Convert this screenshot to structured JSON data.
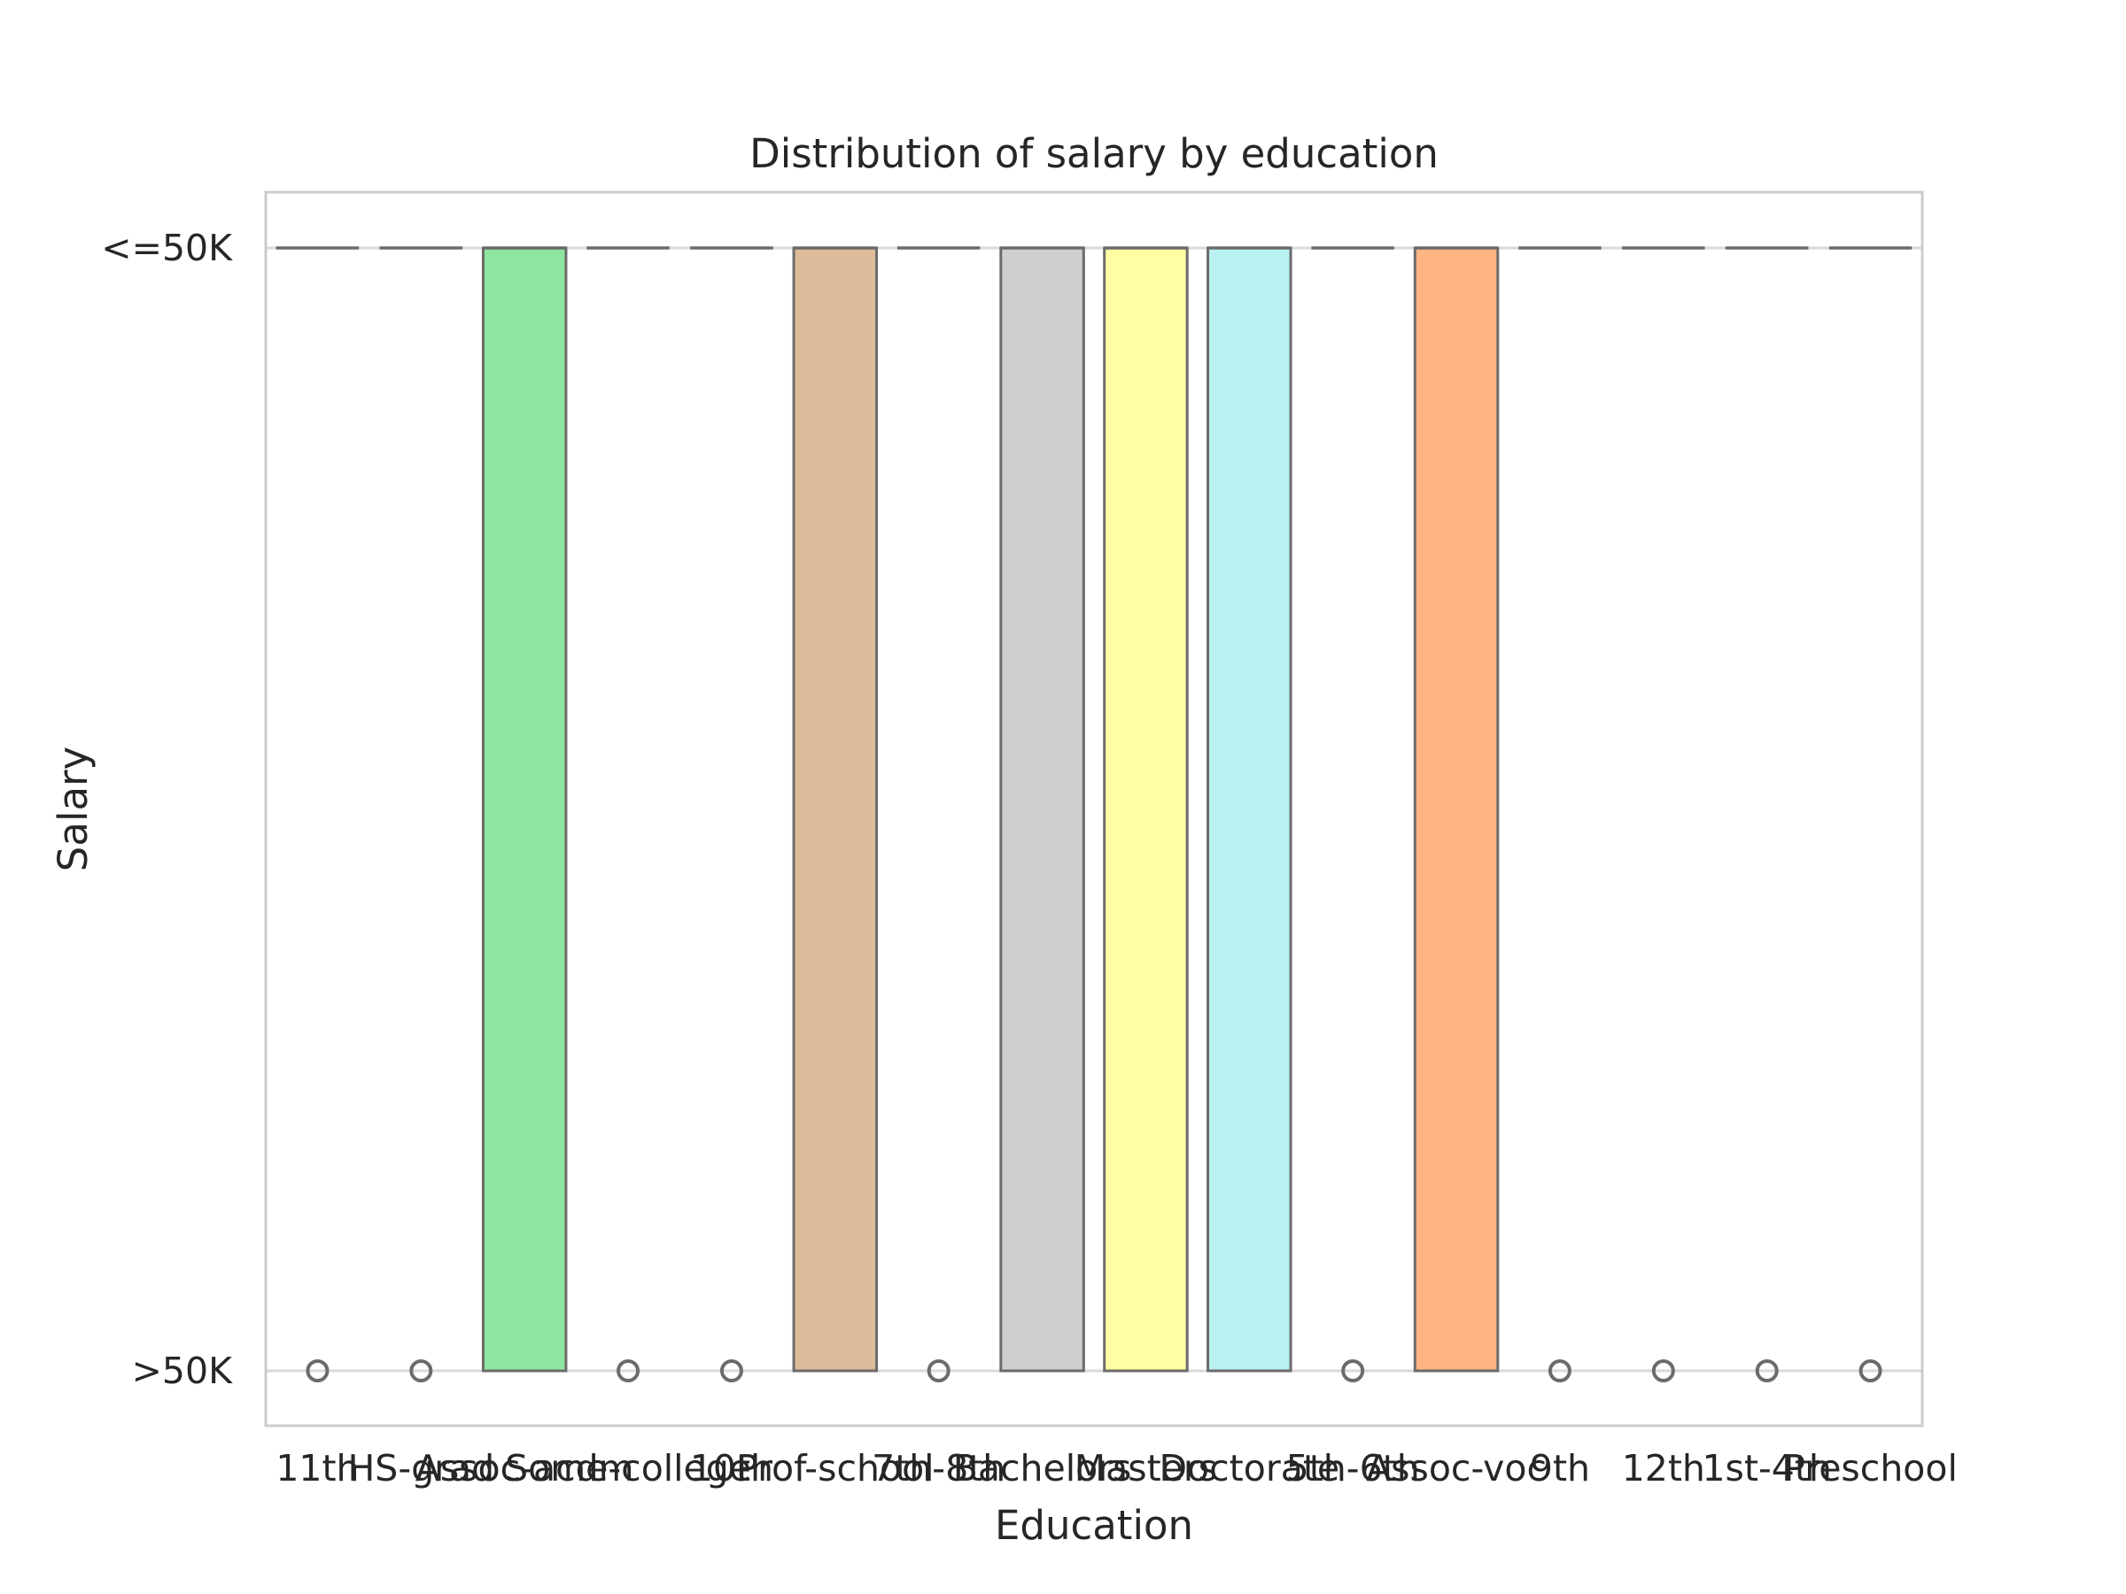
{
  "chart_data": {
    "type": "box",
    "title": "Distribution of salary by education",
    "xlabel": "Education",
    "ylabel": "Salary",
    "y_categories": [
      ">50K",
      "<=50K"
    ],
    "grid": true,
    "categories": [
      "11th",
      "HS-grad",
      "Assoc-acdm",
      "Some-college",
      "10th",
      "Prof-school",
      "7th-8th",
      "Bachelors",
      "Masters",
      "Doctorate",
      "5th-6th",
      "Assoc-voc",
      "9th",
      "12th",
      "1st-4th",
      "Preschool"
    ],
    "boxes": [
      {
        "category": "11th",
        "q1": "<=50K",
        "median": "<=50K",
        "q3": "<=50K",
        "color": "#a1c9f4",
        "outliers": [
          ">50K"
        ]
      },
      {
        "category": "HS-grad",
        "q1": "<=50K",
        "median": "<=50K",
        "q3": "<=50K",
        "color": "#ffb482",
        "outliers": [
          ">50K"
        ]
      },
      {
        "category": "Assoc-acdm",
        "q1": ">50K",
        "median": "<=50K",
        "q3": "<=50K",
        "color": "#8de5a1",
        "outliers": []
      },
      {
        "category": "Some-college",
        "q1": "<=50K",
        "median": "<=50K",
        "q3": "<=50K",
        "color": "#ff9f9b",
        "outliers": [
          ">50K"
        ]
      },
      {
        "category": "10th",
        "q1": "<=50K",
        "median": "<=50K",
        "q3": "<=50K",
        "color": "#d0bbff",
        "outliers": [
          ">50K"
        ]
      },
      {
        "category": "Prof-school",
        "q1": ">50K",
        "median": "<=50K",
        "q3": "<=50K",
        "color": "#debb9b",
        "outliers": []
      },
      {
        "category": "7th-8th",
        "q1": "<=50K",
        "median": "<=50K",
        "q3": "<=50K",
        "color": "#fab0e4",
        "outliers": [
          ">50K"
        ]
      },
      {
        "category": "Bachelors",
        "q1": ">50K",
        "median": "<=50K",
        "q3": "<=50K",
        "color": "#cfcfcf",
        "outliers": []
      },
      {
        "category": "Masters",
        "q1": ">50K",
        "median": "<=50K",
        "q3": "<=50K",
        "color": "#fffea3",
        "outliers": []
      },
      {
        "category": "Doctorate",
        "q1": ">50K",
        "median": "<=50K",
        "q3": "<=50K",
        "color": "#b9f2f0",
        "outliers": []
      },
      {
        "category": "5th-6th",
        "q1": "<=50K",
        "median": "<=50K",
        "q3": "<=50K",
        "color": "#a1c9f4",
        "outliers": [
          ">50K"
        ]
      },
      {
        "category": "Assoc-voc",
        "q1": ">50K",
        "median": "<=50K",
        "q3": "<=50K",
        "color": "#ffb482",
        "outliers": []
      },
      {
        "category": "9th",
        "q1": "<=50K",
        "median": "<=50K",
        "q3": "<=50K",
        "color": "#8de5a1",
        "outliers": [
          ">50K"
        ]
      },
      {
        "category": "12th",
        "q1": "<=50K",
        "median": "<=50K",
        "q3": "<=50K",
        "color": "#ff9f9b",
        "outliers": [
          ">50K"
        ]
      },
      {
        "category": "1st-4th",
        "q1": "<=50K",
        "median": "<=50K",
        "q3": "<=50K",
        "color": "#d0bbff",
        "outliers": [
          ">50K"
        ]
      },
      {
        "category": "Preschool",
        "q1": "<=50K",
        "median": "<=50K",
        "q3": "<=50K",
        "color": "#debb9b",
        "outliers": [
          ">50K"
        ]
      }
    ]
  }
}
